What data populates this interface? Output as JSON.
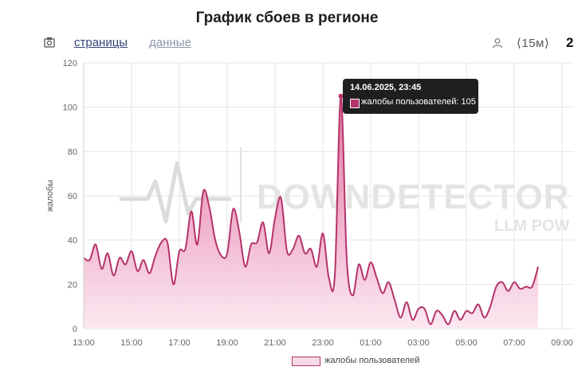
{
  "header": {
    "title": "График сбоев в регионе"
  },
  "toolbar": {
    "tabs": [
      {
        "label": "страницы",
        "active": true
      },
      {
        "label": "данные",
        "active": false
      }
    ],
    "interval": "⟨15м⟩",
    "extra": "2",
    "icons": [
      "camera-icon",
      "user-icon"
    ]
  },
  "watermark": {
    "brand": "DOWNDETECTOR",
    "sub": "LLM POW"
  },
  "tooltip": {
    "title": "14.06.2025, 23:45",
    "label": "жалобы пользователей: 105"
  },
  "legend": {
    "label": "жалобы пользователей"
  },
  "colors": {
    "series": "#b5336a",
    "fill_top": "#e05c95",
    "fill_bottom": "#fbe7f0",
    "grid": "#e6e6e6"
  },
  "chart_data": {
    "type": "area",
    "title": "График сбоев в регионе",
    "xlabel": "",
    "ylabel": "жалобы",
    "ylim": [
      0,
      120
    ],
    "yticks": [
      0,
      20,
      40,
      60,
      80,
      100,
      120
    ],
    "xticks": [
      "13:00",
      "15:00",
      "17:00",
      "19:00",
      "21:00",
      "23:00",
      "01:00",
      "03:00",
      "05:00",
      "07:00",
      "09:00"
    ],
    "x_interval_minutes": 15,
    "x_start": "13:00",
    "grid": true,
    "legend_position": "bottom",
    "series": [
      {
        "name": "жалобы пользователей",
        "values": [
          32,
          31,
          38,
          27,
          34,
          24,
          32,
          29,
          35,
          26,
          31,
          25,
          33,
          39,
          39,
          20,
          35,
          36,
          53,
          38,
          62,
          55,
          40,
          33,
          34,
          54,
          44,
          28,
          38,
          39,
          48,
          34,
          50,
          59,
          35,
          36,
          42,
          34,
          36,
          28,
          43,
          23,
          24,
          105,
          31,
          15,
          29,
          22,
          30,
          23,
          16,
          21,
          13,
          5,
          12,
          4,
          9,
          9,
          2,
          8,
          6,
          2,
          8,
          4,
          8,
          7,
          11,
          5,
          10,
          19,
          21,
          17,
          21,
          18,
          19,
          19,
          28
        ]
      }
    ]
  }
}
